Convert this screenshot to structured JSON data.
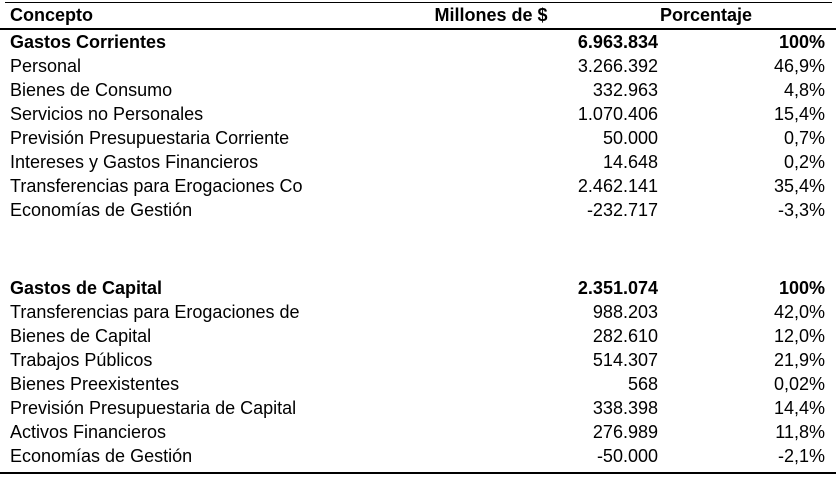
{
  "page": {
    "background_color": "#ffffff",
    "text_color": "#000000",
    "rule_color": "#000000"
  },
  "table": {
    "columns": [
      {
        "label": "Concepto"
      },
      {
        "label": "Millones de $"
      },
      {
        "label": "Porcentaje"
      }
    ],
    "sections": [
      {
        "title_row": {
          "concepto": "Gastos Corrientes",
          "millones": "6.963.834",
          "porcentaje": "100%"
        },
        "rows": [
          {
            "concepto": "Personal",
            "millones": "3.266.392",
            "porcentaje": "46,9%"
          },
          {
            "concepto": "Bienes de Consumo",
            "millones": "332.963",
            "porcentaje": "4,8%"
          },
          {
            "concepto": "Servicios no Personales",
            "millones": "1.070.406",
            "porcentaje": "15,4%"
          },
          {
            "concepto": "Previsión Presupuestaria Corriente",
            "millones": "50.000",
            "porcentaje": "0,7%"
          },
          {
            "concepto": "Intereses y Gastos Financieros",
            "millones": "14.648",
            "porcentaje": "0,2%"
          },
          {
            "concepto": "Transferencias para Erogaciones Co",
            "millones": "2.462.141",
            "porcentaje": "35,4%"
          },
          {
            "concepto": "Economías de Gestión",
            "millones": "-232.717",
            "porcentaje": "-3,3%"
          }
        ]
      },
      {
        "title_row": {
          "concepto": "Gastos de Capital",
          "millones": "2.351.074",
          "porcentaje": "100%"
        },
        "rows": [
          {
            "concepto": "Transferencias para Erogaciones de",
            "millones": "988.203",
            "porcentaje": "42,0%"
          },
          {
            "concepto": "Bienes de Capital",
            "millones": "282.610",
            "porcentaje": "12,0%"
          },
          {
            "concepto": "Trabajos Públicos",
            "millones": "514.307",
            "porcentaje": "21,9%"
          },
          {
            "concepto": "Bienes Preexistentes",
            "millones": "568",
            "porcentaje": "0,02%"
          },
          {
            "concepto": "Previsión Presupuestaria de Capital",
            "millones": "338.398",
            "porcentaje": "14,4%"
          },
          {
            "concepto": "Activos Financieros",
            "millones": "276.989",
            "porcentaje": "11,8%"
          },
          {
            "concepto": "Economías de Gestión",
            "millones": "-50.000",
            "porcentaje": "-2,1%"
          }
        ]
      }
    ]
  }
}
